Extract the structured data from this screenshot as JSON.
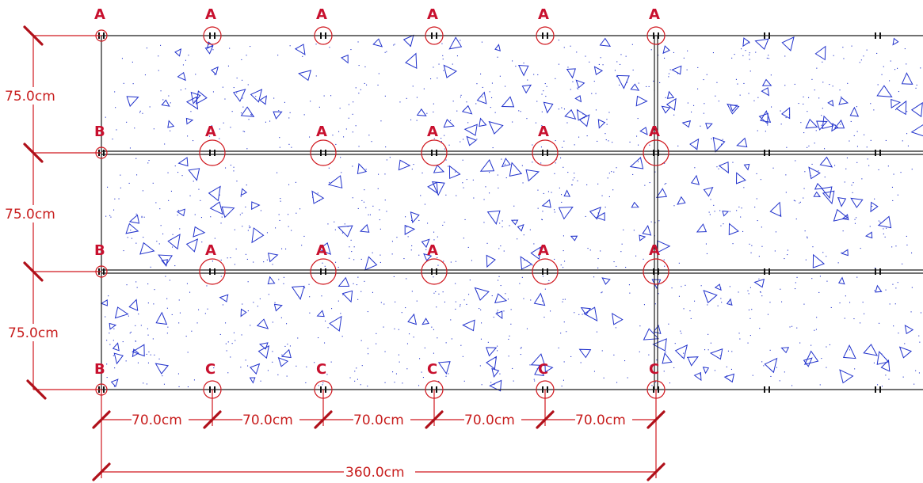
{
  "drawing": {
    "vertical_dims": [
      "75.0cm",
      "75.0cm",
      "75.0cm"
    ],
    "horizontal_dims": [
      "70.0cm",
      "70.0cm",
      "70.0cm",
      "70.0cm",
      "70.0cm"
    ],
    "total_dim": "360.0cm",
    "rows": [
      {
        "labels": [
          "A",
          "A",
          "A",
          "A",
          "A",
          "A"
        ]
      },
      {
        "labels": [
          "B",
          "A",
          "A",
          "A",
          "A",
          "A"
        ]
      },
      {
        "labels": [
          "B",
          "A",
          "A",
          "A",
          "A",
          "A"
        ]
      },
      {
        "labels": [
          "B",
          "C",
          "C",
          "C",
          "C",
          "C"
        ]
      }
    ],
    "colors": {
      "dimension": "#d0171e",
      "label": "#c8102e",
      "beam": "#1a1a1a",
      "hatch": "#2233cc"
    }
  }
}
